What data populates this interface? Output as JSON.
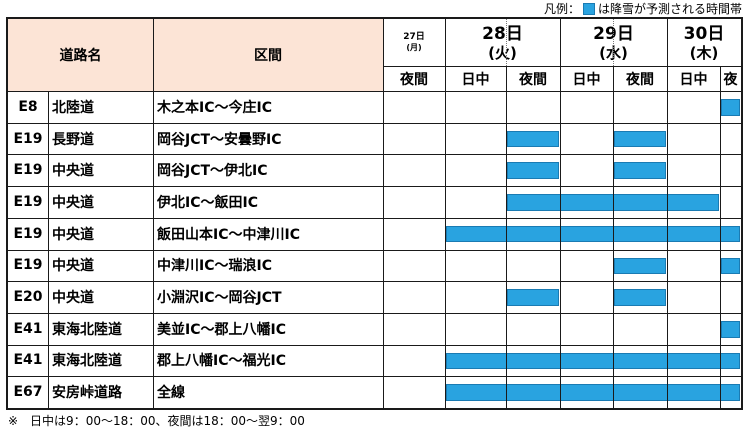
{
  "legend": {
    "prefix": "凡例：",
    "text": "は降雪が予測される時間帯"
  },
  "colors": {
    "snow_bar": "#29a3e0",
    "header_bg": "#fce4d6"
  },
  "header": {
    "road_label": "道路名",
    "section_label": "区間",
    "days": [
      {
        "date": "27日",
        "weekday": "(月)"
      },
      {
        "date": "28日",
        "weekday": "(火)"
      },
      {
        "date": "29日",
        "weekday": "(水)"
      },
      {
        "date": "30日",
        "weekday": "(木)"
      }
    ],
    "periods": [
      "夜間",
      "日中",
      "夜間",
      "日中",
      "夜間",
      "日中",
      "夜"
    ]
  },
  "rows": [
    {
      "code": "E8",
      "road": "北陸道",
      "section": "木之本IC～今庄IC",
      "snow": [
        6
      ]
    },
    {
      "code": "E19",
      "road": "長野道",
      "section": "岡谷JCT～安曇野IC",
      "snow": [
        2,
        4
      ]
    },
    {
      "code": "E19",
      "road": "中央道",
      "section": "岡谷JCT～伊北IC",
      "snow": [
        2,
        4
      ]
    },
    {
      "code": "E19",
      "road": "中央道",
      "section": "伊北IC～飯田IC",
      "snow": [
        2,
        3,
        4,
        5
      ]
    },
    {
      "code": "E19",
      "road": "中央道",
      "section": "飯田山本IC～中津川IC",
      "snow": [
        1,
        2,
        3,
        4,
        5,
        6
      ]
    },
    {
      "code": "E19",
      "road": "中央道",
      "section": "中津川IC～瑞浪IC",
      "snow": [
        4,
        6
      ]
    },
    {
      "code": "E20",
      "road": "中央道",
      "section": "小淵沢IC～岡谷JCT",
      "snow": [
        2,
        4
      ]
    },
    {
      "code": "E41",
      "road": "東海北陸道",
      "section": "美並IC～郡上八幡IC",
      "snow": [
        6
      ]
    },
    {
      "code": "E41",
      "road": "東海北陸道",
      "section": "郡上八幡IC～福光IC",
      "snow": [
        1,
        2,
        3,
        4,
        5,
        6
      ]
    },
    {
      "code": "E67",
      "road": "安房峠道路",
      "section": "全線",
      "snow": [
        1,
        2,
        3,
        4,
        5,
        6
      ]
    }
  ],
  "footnote": "※　日中は9：00～18：00、夜間は18：00～翌9：00"
}
